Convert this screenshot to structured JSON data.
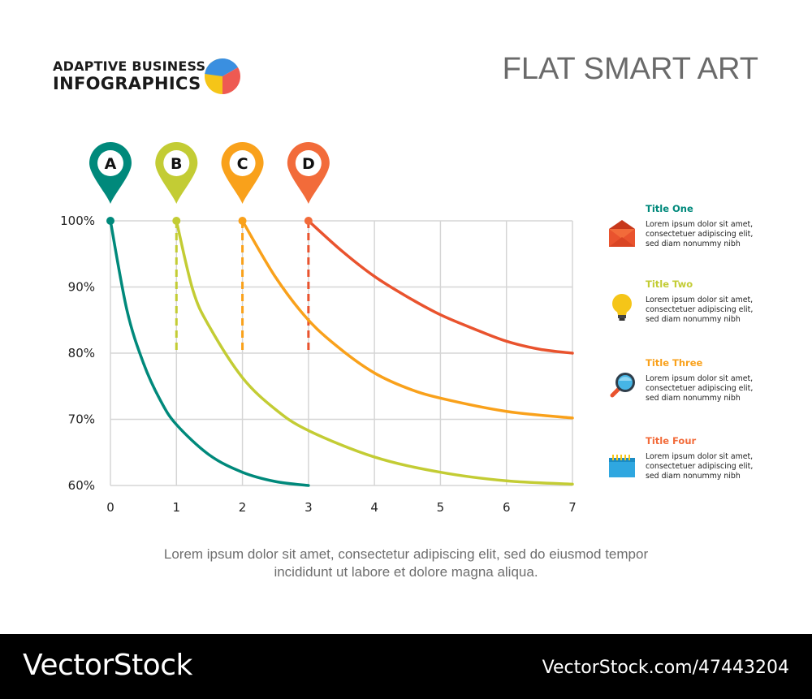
{
  "brand": {
    "line1": "ADAPTIVE BUSINESS",
    "line2": "INFOGRAPHICS"
  },
  "header": {
    "title": "FLAT SMART ART"
  },
  "colors": {
    "teal": "#00897B",
    "lime": "#C3CC34",
    "orange": "#F9A11B",
    "red": "#F26B3A",
    "redline": "#E9532E",
    "grid": "#D5D5D5",
    "pie_blue": "#3A8FE0",
    "pie_yellow": "#F5C518",
    "pie_red": "#EE5A52"
  },
  "chart_data": {
    "type": "line",
    "xlabel": "",
    "ylabel": "",
    "xlim": [
      0,
      7
    ],
    "ylim": [
      60,
      100
    ],
    "x_ticks": [
      0,
      1,
      2,
      3,
      4,
      5,
      6,
      7
    ],
    "y_ticks": [
      60,
      70,
      80,
      90,
      100
    ],
    "y_tick_labels": [
      "60%",
      "70%",
      "80%",
      "90%",
      "100%"
    ],
    "grid": true,
    "series": [
      {
        "name": "A",
        "color": "#00897B",
        "start_x": 0,
        "x": [
          0,
          0.25,
          0.5,
          0.75,
          1,
          1.5,
          2,
          2.5,
          3
        ],
        "y": [
          100,
          86.5,
          78.5,
          73.0,
          69.2,
          64.6,
          62.0,
          60.6,
          60.0
        ]
      },
      {
        "name": "B",
        "color": "#C3CC34",
        "start_x": 1,
        "dashed_to": 80,
        "x": [
          1,
          1.25,
          1.5,
          2,
          2.5,
          3,
          4,
          5,
          6,
          7
        ],
        "y": [
          100,
          89.5,
          84.0,
          76.3,
          71.5,
          68.3,
          64.3,
          62.0,
          60.7,
          60.2
        ]
      },
      {
        "name": "C",
        "color": "#F9A11B",
        "start_x": 2,
        "dashed_to": 80,
        "x": [
          2,
          2.5,
          3,
          3.5,
          4,
          4.5,
          5,
          6,
          7
        ],
        "y": [
          100,
          91.5,
          85.0,
          80.5,
          77.0,
          74.7,
          73.2,
          71.2,
          70.2
        ]
      },
      {
        "name": "D",
        "color": "#E9532E",
        "pin_color": "#F26B3A",
        "start_x": 3,
        "dashed_to": 80,
        "x": [
          3,
          3.5,
          4,
          4.5,
          5,
          5.5,
          6,
          6.5,
          7
        ],
        "y": [
          100,
          95.5,
          91.6,
          88.5,
          85.8,
          83.7,
          81.8,
          80.6,
          80.0
        ]
      }
    ]
  },
  "legend": [
    {
      "title": "Title One",
      "color": "#00897B",
      "icon": "envelope-icon",
      "text": "Lorem ipsum dolor sit amet,\nconsectetuer adipiscing elit,\nsed diam nonummy nibh"
    },
    {
      "title": "Title Two",
      "color": "#C3CC34",
      "icon": "lightbulb-icon",
      "text": "Lorem ipsum dolor sit amet,\nconsectetuer adipiscing elit,\nsed diam nonummy nibh"
    },
    {
      "title": "Title Three",
      "color": "#F9A11B",
      "icon": "magnifier-icon",
      "text": "Lorem ipsum dolor sit amet,\nconsectetuer adipiscing elit,\nsed diam nonummy nibh"
    },
    {
      "title": "Title Four",
      "color": "#F26B3A",
      "icon": "calendar-icon",
      "text": "Lorem ipsum dolor sit amet,\nconsectetuer adipiscing elit,\nsed diam nonummy nibh"
    }
  ],
  "caption": "Lorem ipsum dolor sit amet, consectetur adipiscing elit, sed do eiusmod tempor\nincididunt ut labore et dolore magna aliqua.",
  "footer": {
    "logo": "VectorStock",
    "id": "VectorStock.com/47443204"
  }
}
